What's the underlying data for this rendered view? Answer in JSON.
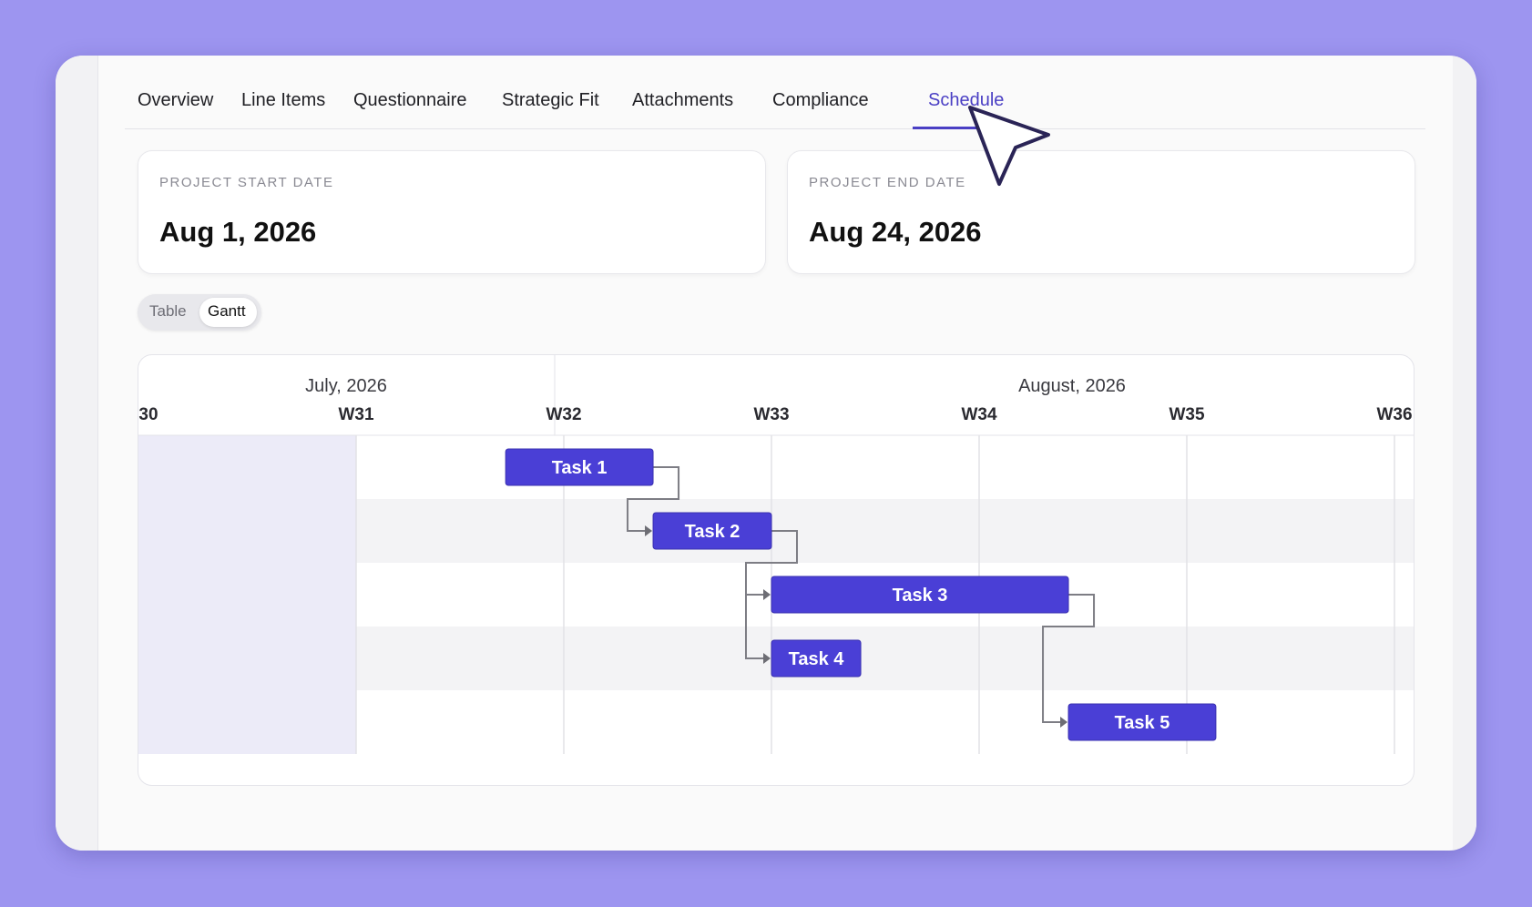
{
  "tabs": [
    {
      "label": "Overview"
    },
    {
      "label": "Line Items"
    },
    {
      "label": "Questionnaire"
    },
    {
      "label": "Strategic Fit"
    },
    {
      "label": "Attachments"
    },
    {
      "label": "Compliance"
    },
    {
      "label": "Schedule",
      "active": true
    }
  ],
  "project_start": {
    "label": "PROJECT START DATE",
    "value": "Aug 1, 2026"
  },
  "project_end": {
    "label": "PROJECT END DATE",
    "value": "Aug 24, 2026"
  },
  "view_toggle": {
    "options": [
      "Table",
      "Gantt"
    ],
    "selected": "Gantt"
  },
  "gantt": {
    "months": [
      {
        "label": "July, 2026"
      },
      {
        "label": "August, 2026"
      }
    ],
    "weeks": [
      "30",
      "W31",
      "W32",
      "W33",
      "W34",
      "W35",
      "W36"
    ],
    "tasks": [
      {
        "name": "Task 1",
        "start_week": 31.72,
        "end_week": 32.43
      },
      {
        "name": "Task 2",
        "start_week": 32.43,
        "end_week": 33.0
      },
      {
        "name": "Task 3",
        "start_week": 33.0,
        "end_week": 34.43
      },
      {
        "name": "Task 4",
        "start_week": 33.0,
        "end_week": 33.43
      },
      {
        "name": "Task 5",
        "start_week": 34.43,
        "end_week": 35.14
      }
    ],
    "dependencies": [
      [
        0,
        1
      ],
      [
        1,
        2
      ],
      [
        1,
        3
      ],
      [
        2,
        4
      ]
    ],
    "colors": {
      "task": "#4a3fd6",
      "accent": "#4a3fc4",
      "highlight": "#ecebf8"
    }
  }
}
